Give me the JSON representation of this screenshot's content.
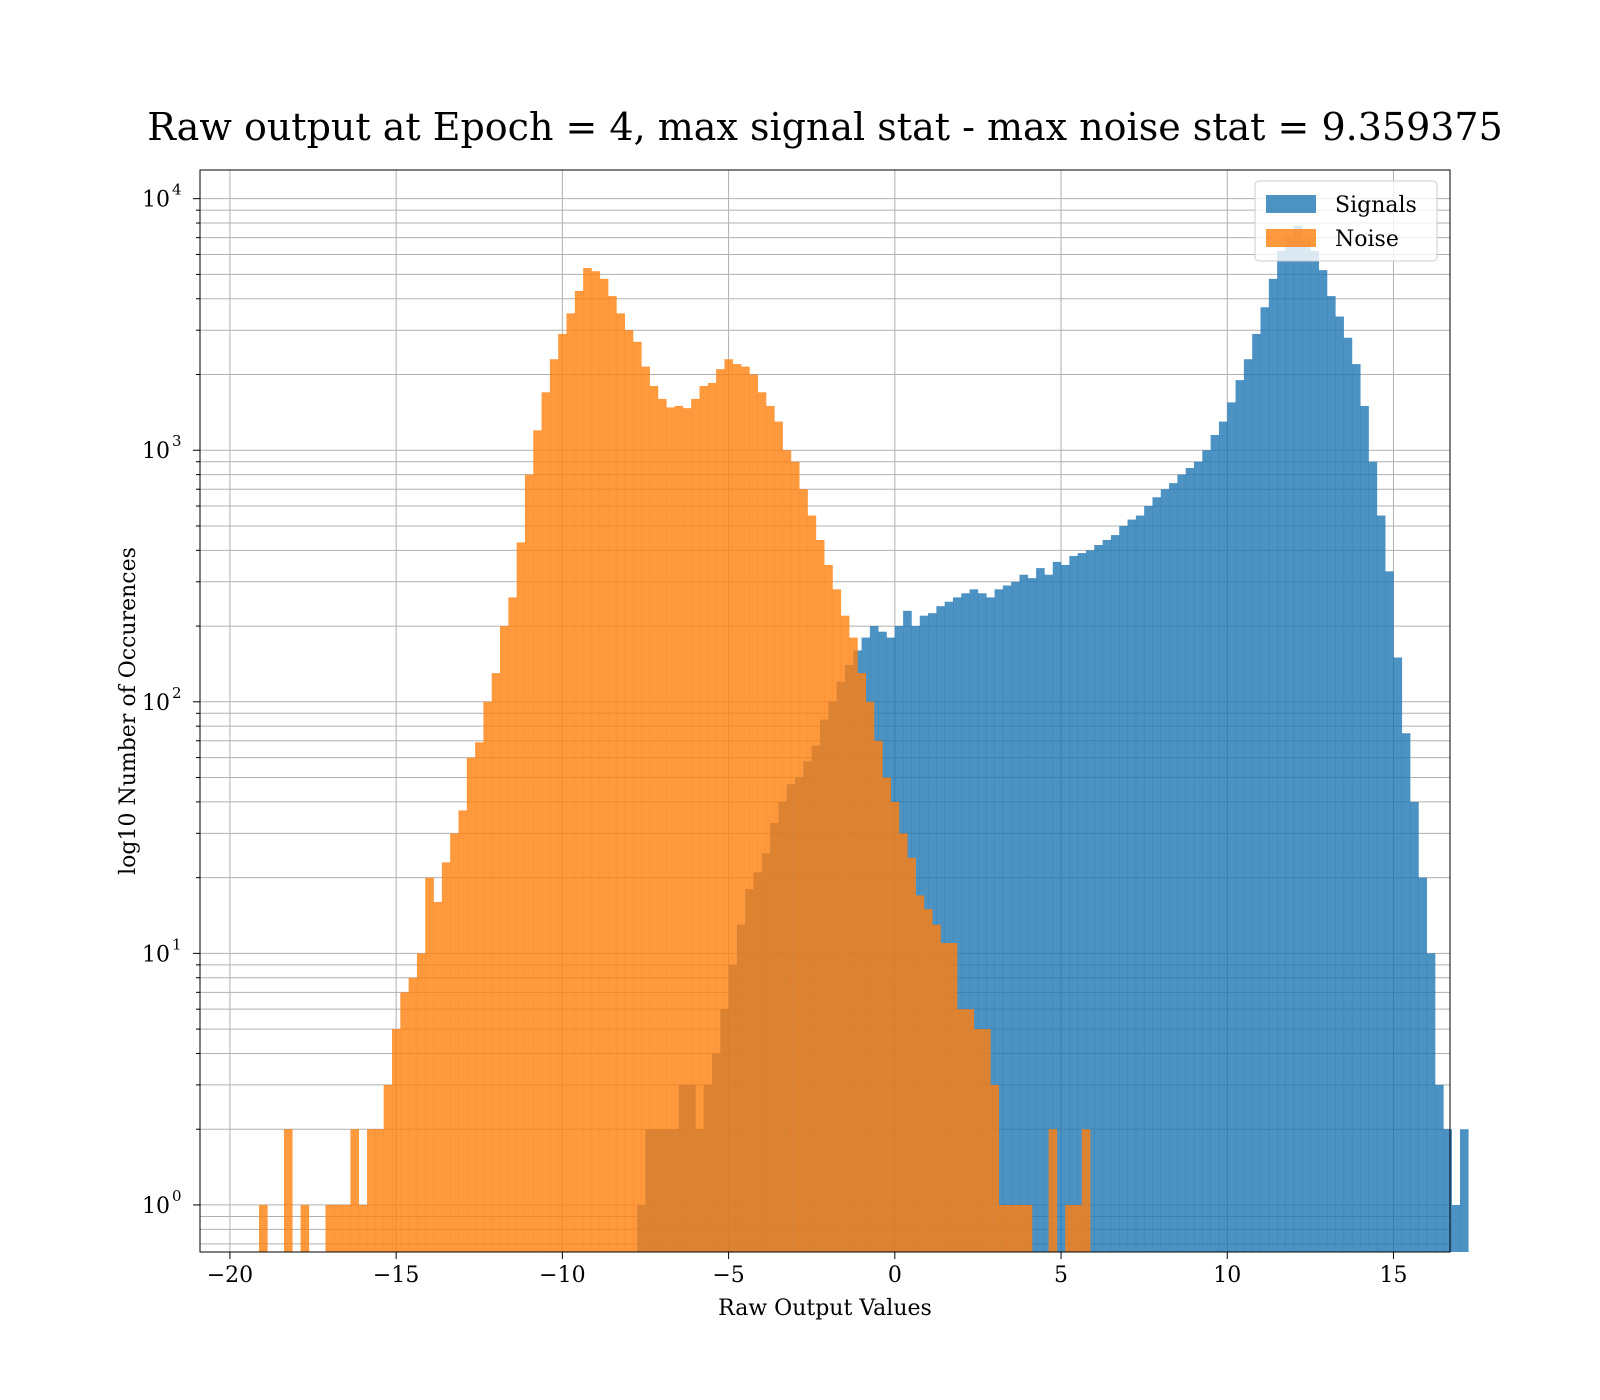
{
  "chart_data": {
    "type": "bar",
    "title": "Raw output at Epoch = 4, max signal stat - max noise stat = 9.359375",
    "xlabel": "Raw Output Values",
    "ylabel": "log10 Number of Occurences",
    "xlim": [
      -20.9,
      16.7
    ],
    "ylim": [
      0.65,
      13000
    ],
    "yscale": "log",
    "grid": true,
    "legend_position": "upper right",
    "x_ticks": [
      -20,
      -15,
      -10,
      -5,
      0,
      5,
      10,
      15
    ],
    "x_tick_labels": [
      "−20",
      "−15",
      "−10",
      "−5",
      "0",
      "5",
      "10",
      "15"
    ],
    "y_ticks": [
      {
        "value": 1,
        "base": "10",
        "exp": "0"
      },
      {
        "value": 10,
        "base": "10",
        "exp": "1"
      },
      {
        "value": 100,
        "base": "10",
        "exp": "2"
      },
      {
        "value": 1000,
        "base": "10",
        "exp": "3"
      },
      {
        "value": 10000,
        "base": "10",
        "exp": "4"
      }
    ],
    "bin_width": 0.25,
    "series": [
      {
        "name": "Signals",
        "color": "#1f77b4",
        "opacity": 0.8,
        "start": -7.75,
        "values": [
          1,
          2,
          2,
          2,
          2,
          3,
          3,
          2,
          3,
          4,
          6,
          9,
          13,
          18,
          21,
          25,
          33,
          40,
          47,
          50,
          58,
          67,
          85,
          100,
          120,
          140,
          160,
          180,
          200,
          190,
          180,
          200,
          230,
          200,
          220,
          225,
          240,
          250,
          260,
          270,
          280,
          270,
          260,
          280,
          290,
          300,
          320,
          310,
          340,
          320,
          360,
          350,
          380,
          390,
          400,
          420,
          440,
          460,
          500,
          530,
          550,
          600,
          650,
          700,
          740,
          800,
          850,
          900,
          1000,
          1150,
          1300,
          1550,
          1900,
          2300,
          2900,
          3700,
          4800,
          6200,
          7100,
          7800,
          7100,
          6200,
          5200,
          4100,
          3400,
          2800,
          2200,
          1500,
          900,
          550,
          330,
          150,
          75,
          40,
          20,
          10,
          3,
          2,
          1,
          2
        ]
      },
      {
        "name": "Noise",
        "color": "#ff7f0e",
        "opacity": 0.8,
        "start": -19.125,
        "values": [
          1,
          0,
          0,
          2,
          0,
          1,
          0,
          0,
          1,
          1,
          1,
          2,
          1,
          2,
          2,
          3,
          5,
          7,
          8,
          10,
          20,
          16,
          23,
          30,
          37,
          60,
          69,
          100,
          130,
          200,
          260,
          430,
          800,
          1200,
          1700,
          2300,
          2900,
          3500,
          4300,
          5300,
          5150,
          4800,
          4100,
          3500,
          3000,
          2700,
          2150,
          1800,
          1600,
          1480,
          1500,
          1470,
          1600,
          1800,
          1850,
          2100,
          2300,
          2200,
          2150,
          2000,
          1700,
          1500,
          1300,
          1000,
          900,
          700,
          550,
          440,
          350,
          280,
          220,
          180,
          130,
          100,
          70,
          50,
          40,
          30,
          24,
          17,
          15,
          13,
          11,
          11,
          6,
          6,
          5,
          5,
          3,
          1,
          1,
          1,
          1,
          0,
          0,
          2,
          0,
          1,
          1,
          2
        ]
      }
    ]
  }
}
